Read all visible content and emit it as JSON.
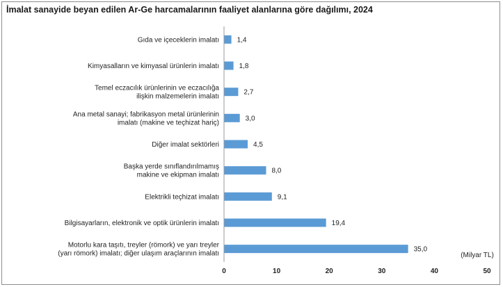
{
  "chart_data": {
    "type": "bar",
    "orientation": "horizontal",
    "title": "İmalat sanayide beyan edilen Ar-Ge harcamalarının faaliyet alanlarına göre dağılımı, 2024",
    "unit_label": "(Milyar TL)",
    "categories": [
      [
        "Gıda ve içeceklerin imalatı"
      ],
      [
        "Kimyasalların ve kimyasal ürünlerin imalatı"
      ],
      [
        "Temel eczacılık ürünlerinin ve eczacılığa",
        "ilişkin malzemelerin imalatı"
      ],
      [
        "Ana metal sanayi; fabrikasyon metal ürünlerinin",
        "imalatı (makine ve teçhizat hariç)"
      ],
      [
        "Diğer imalat sektörleri"
      ],
      [
        "Başka yerde sınıflandırılmamış",
        "makine ve ekipman imalatı"
      ],
      [
        "Elektrikli teçhizat imalatı"
      ],
      [
        "Bilgisayarların, elektronik ve optik ürünlerin imalatı"
      ],
      [
        "Motorlu kara taşıtı, treyler (römork) ve yarı treyler",
        "(yarı römork) imalatı; diğer ulaşım araçlarının imalatı"
      ]
    ],
    "values": [
      1.4,
      1.8,
      2.7,
      3.0,
      4.5,
      8.0,
      9.1,
      19.4,
      35.0
    ],
    "value_labels": [
      "1,4",
      "1,8",
      "2,7",
      "3,0",
      "4,5",
      "8,0",
      "9,1",
      "19,4",
      "35,0"
    ],
    "xlim": [
      0,
      50
    ],
    "xticks": [
      "0",
      "10",
      "20",
      "30",
      "40",
      "50"
    ],
    "xtick_values": [
      0,
      10,
      20,
      30,
      40,
      50
    ],
    "grid": false,
    "bar_color": "#5b9bd5"
  }
}
